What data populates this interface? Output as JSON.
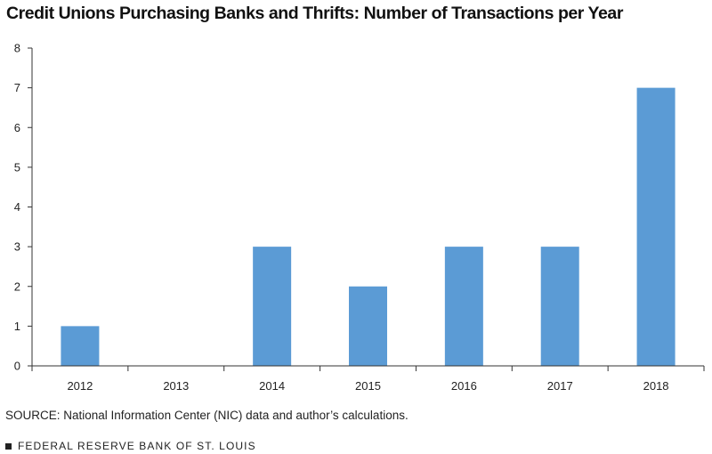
{
  "chart_data": {
    "type": "bar",
    "title": "Credit Unions Purchasing Banks and Thrifts: Number of Transactions per Year",
    "xlabel": "",
    "ylabel": "",
    "categories": [
      "2012",
      "2013",
      "2014",
      "2015",
      "2016",
      "2017",
      "2018"
    ],
    "values": [
      1,
      0,
      3,
      2,
      3,
      3,
      7
    ],
    "ylim": [
      0,
      8
    ],
    "yticks": [
      0,
      1,
      2,
      3,
      4,
      5,
      6,
      7,
      8
    ],
    "grid": false,
    "legend": "none",
    "bar_color": "#5b9bd5"
  },
  "source": "SOURCE: National Information Center (NIC) data and author’s calculations.",
  "footer": "FEDERAL RESERVE BANK OF ST. LOUIS"
}
